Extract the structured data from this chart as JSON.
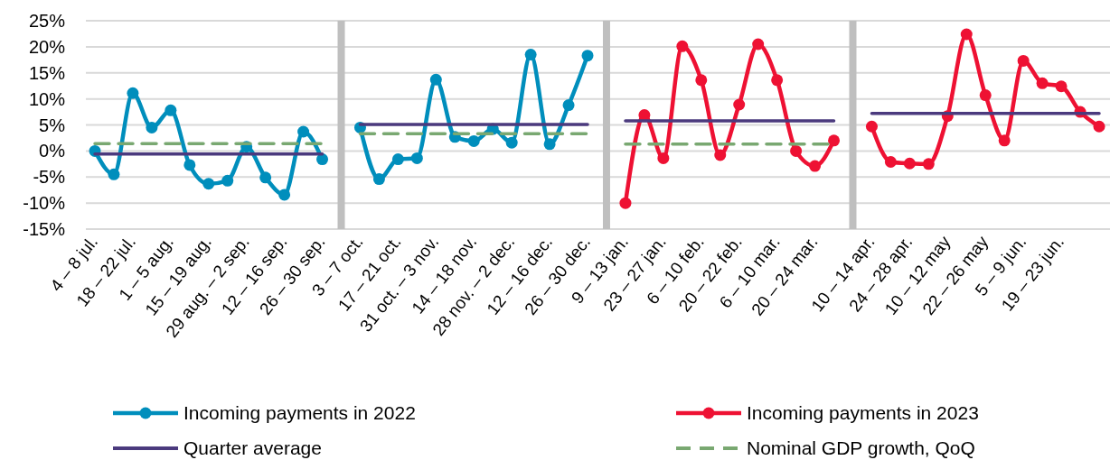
{
  "chart_data": {
    "type": "line",
    "categories": [
      "4 – 8 jul.",
      null,
      "18 – 22 jul.",
      null,
      "1 – 5 aug.",
      null,
      "15 – 19 aug.",
      null,
      "29 aug. – 2 sep.",
      null,
      "12 – 16 sep.",
      null,
      "26 – 30 sep.",
      null,
      "3 – 7 oct.",
      null,
      "17 – 21 oct.",
      null,
      "31 oct. – 3 nov.",
      null,
      "14 – 18 nov.",
      null,
      "28 nov. – 2 dec.",
      null,
      "12 – 16 dec.",
      null,
      "26 – 30 dec.",
      null,
      "9 – 13 jan.",
      null,
      "23 – 27 jan.",
      null,
      "6 – 10 feb.",
      null,
      "20 – 22 feb.",
      null,
      "6 – 10 mar.",
      null,
      "20 – 24 mar.",
      null,
      null,
      "10 – 14 apr.",
      null,
      "24 – 28 apr.",
      null,
      "10 – 12 may",
      null,
      "22 – 26 may",
      null,
      "5 – 9 jun.",
      null,
      "19 – 23 jun.",
      null,
      null
    ],
    "series": [
      {
        "name": "Incoming payments in 2022",
        "color": "#008ebc",
        "marker": "circle",
        "line_style": "solid",
        "values": [
          0,
          -4.5,
          11.1,
          4.5,
          7.8,
          -2.7,
          -6.3,
          -5.7,
          0.8,
          -5.1,
          -8.4,
          3.7,
          -1.6,
          null,
          4.5,
          -5.4,
          -1.6,
          -1.4,
          13.7,
          2.7,
          1.9,
          4.2,
          1.6,
          18.5,
          1.3,
          8.8,
          18.3,
          null,
          null,
          null,
          null,
          null,
          null,
          null,
          null,
          null,
          null,
          null,
          null,
          null,
          null,
          null,
          null,
          null,
          null,
          null,
          null,
          null,
          null,
          null,
          null,
          null,
          null,
          null
        ]
      },
      {
        "name": "Incoming payments in 2023",
        "color": "#ee1133",
        "marker": "circle",
        "line_style": "solid",
        "values": [
          null,
          null,
          null,
          null,
          null,
          null,
          null,
          null,
          null,
          null,
          null,
          null,
          null,
          null,
          null,
          null,
          null,
          null,
          null,
          null,
          null,
          null,
          null,
          null,
          null,
          null,
          null,
          null,
          -10,
          6.9,
          -1.4,
          20.1,
          13.6,
          -0.8,
          8.9,
          20.5,
          13.6,
          0,
          -2.9,
          2.0,
          null,
          4.7,
          -2.1,
          -2.4,
          -2.5,
          6.7,
          22.4,
          10.7,
          2.0,
          17.3,
          13.0,
          12.4,
          7.5,
          4.7
        ]
      },
      {
        "name": "Quarter average",
        "color": "#4b3a7e",
        "marker": "none",
        "line_style": "solid",
        "values": [
          -0.6,
          -0.6,
          -0.6,
          -0.6,
          -0.6,
          -0.6,
          -0.6,
          -0.6,
          -0.6,
          -0.6,
          -0.6,
          -0.6,
          -0.6,
          null,
          5.1,
          5.1,
          5.1,
          5.1,
          5.1,
          5.1,
          5.1,
          5.1,
          5.1,
          5.1,
          5.1,
          5.1,
          5.1,
          null,
          5.8,
          5.8,
          5.8,
          5.8,
          5.8,
          5.8,
          5.8,
          5.8,
          5.8,
          5.8,
          5.8,
          5.8,
          null,
          7.2,
          7.2,
          7.2,
          7.2,
          7.2,
          7.2,
          7.2,
          7.2,
          7.2,
          7.2,
          7.2,
          7.2,
          7.2
        ]
      },
      {
        "name": "Nominal GDP growth, QoQ",
        "color": "#79a871",
        "marker": "none",
        "line_style": "dashed",
        "values": [
          1.4,
          1.4,
          1.4,
          1.4,
          1.4,
          1.4,
          1.4,
          1.4,
          1.4,
          1.4,
          1.4,
          1.4,
          1.4,
          null,
          3.3,
          3.3,
          3.3,
          3.3,
          3.3,
          3.3,
          3.3,
          3.3,
          3.3,
          3.3,
          3.3,
          3.3,
          3.3,
          null,
          1.3,
          1.3,
          1.3,
          1.3,
          1.3,
          1.3,
          1.3,
          1.3,
          1.3,
          1.3,
          1.3,
          1.3,
          null,
          null,
          null,
          null,
          null,
          null,
          null,
          null,
          null,
          null,
          null,
          null,
          null,
          null
        ]
      }
    ],
    "ylim": [
      -15,
      25
    ],
    "yticks": [
      {
        "value": -15,
        "label": "-15%"
      },
      {
        "value": -10,
        "label": "-10%"
      },
      {
        "value": -5,
        "label": "-5%"
      },
      {
        "value": 0,
        "label": "0%"
      },
      {
        "value": 5,
        "label": "5%"
      },
      {
        "value": 10,
        "label": "10%"
      },
      {
        "value": 15,
        "label": "15%"
      },
      {
        "value": 20,
        "label": "20%"
      },
      {
        "value": 25,
        "label": "25%"
      }
    ],
    "grid": "y",
    "legend": "bottom"
  }
}
